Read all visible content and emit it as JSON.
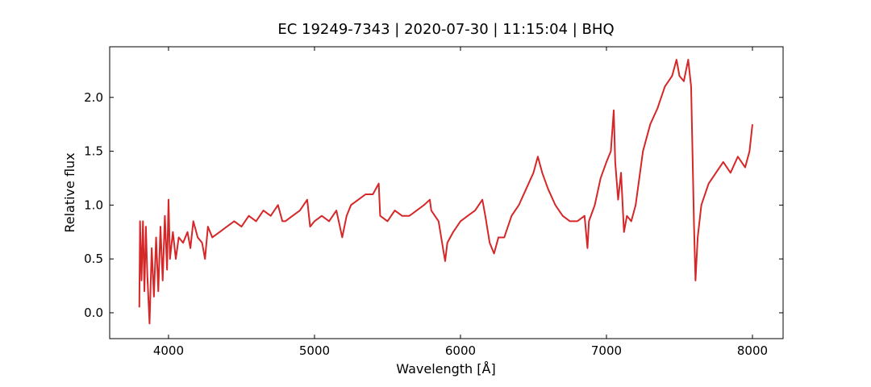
{
  "chart_data": {
    "type": "line",
    "title": "EC 19249-7343 | 2020-07-30 | 11:15:04 | BHQ",
    "x_label": "Wavelength [Å]",
    "y_label": "Relative flux",
    "xlim": [
      3597,
      8210
    ],
    "ylim": [
      -0.24,
      2.47
    ],
    "xticks": [
      4000,
      5000,
      6000,
      7000,
      8000
    ],
    "yticks": [
      {
        "value": 0,
        "label": "0.0"
      },
      0.5,
      {
        "value": 1,
        "label": "1.0"
      },
      1.5,
      {
        "value": 2,
        "label": "2.0"
      }
    ],
    "grid": false,
    "series": [
      {
        "color": "#d62728",
        "x": [
          3800,
          3805,
          3815,
          3825,
          3835,
          3845,
          3855,
          3870,
          3885,
          3900,
          3915,
          3930,
          3945,
          3960,
          3975,
          3990,
          4000,
          4010,
          4030,
          4050,
          4070,
          4100,
          4130,
          4150,
          4170,
          4200,
          4230,
          4250,
          4270,
          4300,
          4350,
          4400,
          4450,
          4500,
          4550,
          4600,
          4650,
          4700,
          4750,
          4780,
          4800,
          4850,
          4900,
          4950,
          4970,
          5000,
          5050,
          5100,
          5150,
          5190,
          5220,
          5250,
          5300,
          5350,
          5400,
          5440,
          5450,
          5500,
          5550,
          5600,
          5650,
          5700,
          5750,
          5790,
          5800,
          5850,
          5880,
          5895,
          5910,
          5950,
          6000,
          6050,
          6100,
          6150,
          6170,
          6200,
          6230,
          6260,
          6300,
          6350,
          6400,
          6450,
          6500,
          6530,
          6560,
          6600,
          6650,
          6700,
          6750,
          6800,
          6850,
          6870,
          6880,
          6920,
          6960,
          7000,
          7030,
          7050,
          7060,
          7080,
          7100,
          7120,
          7140,
          7170,
          7200,
          7250,
          7300,
          7350,
          7400,
          7450,
          7480,
          7500,
          7530,
          7560,
          7580,
          7600,
          7610,
          7625,
          7650,
          7700,
          7750,
          7800,
          7850,
          7900,
          7950,
          7980,
          8000
        ],
        "values": [
          0.05,
          0.85,
          0.3,
          0.85,
          0.2,
          0.8,
          0.35,
          -0.1,
          0.6,
          0.15,
          0.7,
          0.2,
          0.8,
          0.3,
          0.9,
          0.4,
          1.05,
          0.5,
          0.75,
          0.5,
          0.7,
          0.65,
          0.75,
          0.6,
          0.85,
          0.7,
          0.65,
          0.5,
          0.8,
          0.7,
          0.75,
          0.8,
          0.85,
          0.8,
          0.9,
          0.85,
          0.95,
          0.9,
          1.0,
          0.85,
          0.85,
          0.9,
          0.95,
          1.05,
          0.8,
          0.85,
          0.9,
          0.85,
          0.95,
          0.7,
          0.9,
          1.0,
          1.05,
          1.1,
          1.1,
          1.2,
          0.9,
          0.85,
          0.95,
          0.9,
          0.9,
          0.95,
          1.0,
          1.05,
          0.95,
          0.85,
          0.6,
          0.48,
          0.65,
          0.75,
          0.85,
          0.9,
          0.95,
          1.05,
          0.9,
          0.65,
          0.55,
          0.7,
          0.7,
          0.9,
          1.0,
          1.15,
          1.3,
          1.45,
          1.3,
          1.15,
          1.0,
          0.9,
          0.85,
          0.85,
          0.9,
          0.6,
          0.85,
          1.0,
          1.25,
          1.4,
          1.5,
          1.88,
          1.4,
          1.05,
          1.3,
          0.75,
          0.9,
          0.85,
          1.0,
          1.5,
          1.75,
          1.9,
          2.1,
          2.2,
          2.35,
          2.2,
          2.15,
          2.35,
          2.1,
          0.8,
          0.3,
          0.7,
          1.0,
          1.2,
          1.3,
          1.4,
          1.3,
          1.45,
          1.35,
          1.5,
          1.75
        ]
      }
    ]
  }
}
